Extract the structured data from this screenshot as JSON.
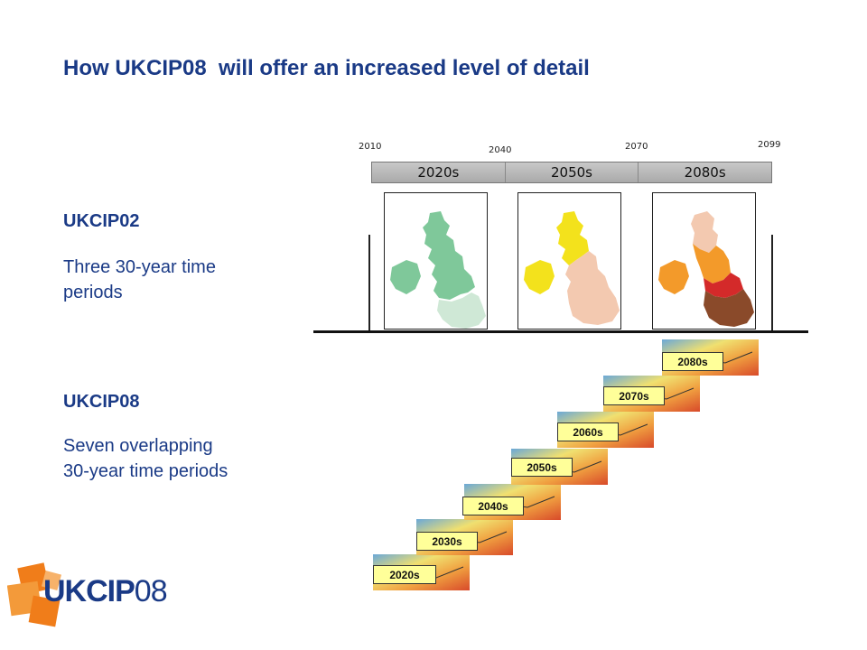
{
  "title": "How UKCIP08  will offer an increased level of detail",
  "ukcip02": {
    "heading": "UKCIP02",
    "desc_line1": "Three 30-year time",
    "desc_line2": "periods",
    "years": [
      "2010",
      "2040",
      "2070",
      "2099"
    ],
    "periods": [
      "2020s",
      "2050s",
      "2080s"
    ],
    "map_colors": {
      "2020s": [
        "#7fc89a",
        "#cfe8d6"
      ],
      "2050s": [
        "#f3e21c",
        "#f3c9b0"
      ],
      "2080s": [
        "#f39a2a",
        "#d42a2a",
        "#8a4a2a"
      ]
    }
  },
  "ukcip08": {
    "heading": "UKCIP08",
    "desc_line1": "Seven overlapping",
    "desc_line2": "30-year time periods",
    "periods": [
      "2020s",
      "2030s",
      "2040s",
      "2050s",
      "2060s",
      "2070s",
      "2080s"
    ]
  },
  "logo": {
    "text_bold": "UKCIP",
    "text_light": "08",
    "accent": "#f07d1a",
    "ink": "#1a3a86"
  }
}
